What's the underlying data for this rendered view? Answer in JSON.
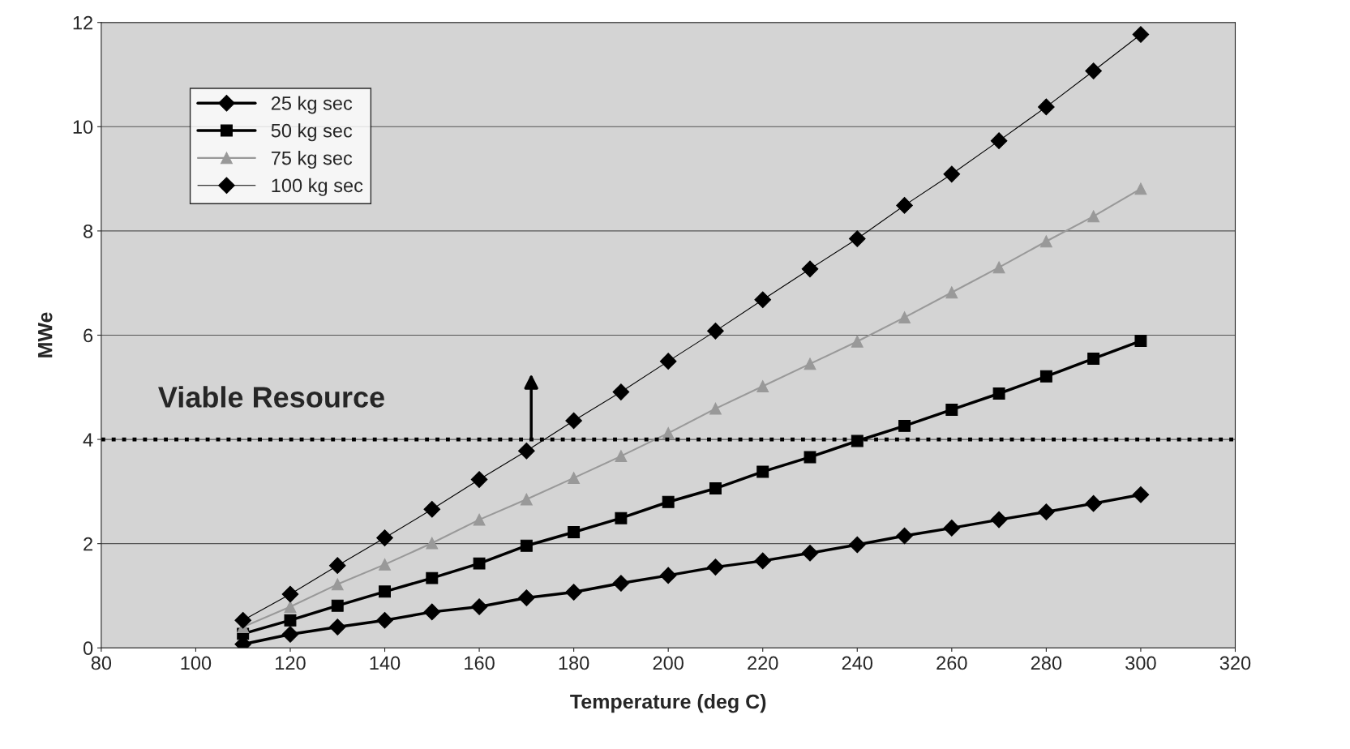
{
  "chart_data": {
    "type": "line",
    "xlabel": "Temperature (deg C)",
    "ylabel": "MWe",
    "x": [
      110,
      120,
      130,
      140,
      150,
      160,
      170,
      180,
      190,
      200,
      210,
      220,
      230,
      240,
      250,
      260,
      270,
      280,
      290,
      300
    ],
    "series": [
      {
        "name": "25 kg sec",
        "color": "#000000",
        "marker": "diamond",
        "values": [
          0.07,
          0.26,
          0.4,
          0.53,
          0.69,
          0.79,
          0.96,
          1.07,
          1.24,
          1.39,
          1.55,
          1.67,
          1.82,
          1.98,
          2.15,
          2.3,
          2.46,
          2.61,
          2.77,
          2.94
        ]
      },
      {
        "name": "50 kg sec",
        "color": "#000000",
        "marker": "square",
        "values": [
          0.27,
          0.53,
          0.81,
          1.08,
          1.34,
          1.62,
          1.96,
          2.22,
          2.49,
          2.8,
          3.06,
          3.38,
          3.66,
          3.97,
          4.26,
          4.57,
          4.88,
          5.21,
          5.55,
          5.89
        ]
      },
      {
        "name": "75 kg sec",
        "color": "#999999",
        "marker": "triangle",
        "values": [
          0.4,
          0.79,
          1.22,
          1.6,
          2.01,
          2.46,
          2.85,
          3.26,
          3.68,
          4.12,
          4.59,
          5.02,
          5.45,
          5.88,
          6.34,
          6.82,
          7.3,
          7.8,
          8.28,
          8.81
        ]
      },
      {
        "name": "100 kg sec",
        "color": "#000000",
        "marker": "diamond",
        "values": [
          0.53,
          1.03,
          1.58,
          2.11,
          2.66,
          3.23,
          3.78,
          4.36,
          4.91,
          5.5,
          6.08,
          6.68,
          7.27,
          7.85,
          8.49,
          9.09,
          9.73,
          10.38,
          11.07,
          11.77
        ]
      }
    ],
    "xlim": [
      80,
      320
    ],
    "xticks": [
      80,
      100,
      120,
      140,
      160,
      180,
      200,
      220,
      240,
      260,
      280,
      300,
      320
    ],
    "ylim": [
      0,
      12
    ],
    "yticks": [
      0,
      2,
      4,
      6,
      8,
      10,
      12
    ],
    "ref_lines": [
      {
        "axis": "y",
        "value": 4,
        "label": "Viable Resource",
        "color": "#000000",
        "line_style": "dotted"
      }
    ],
    "grid": "y",
    "legend": "top left",
    "line_style": "solid"
  }
}
